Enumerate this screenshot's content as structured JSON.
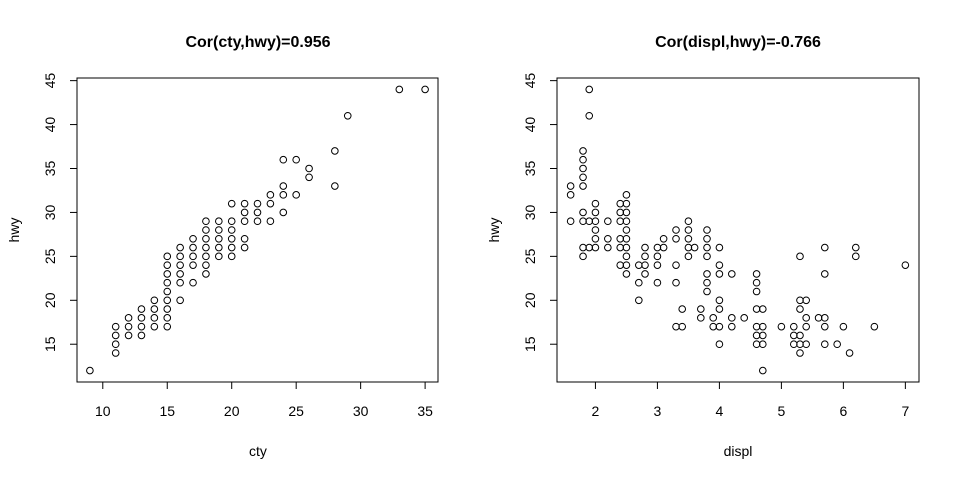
{
  "chart_data": [
    {
      "type": "scatter",
      "title": "Cor(cty,hwy)=0.956",
      "xlabel": "cty",
      "ylabel": "hwy",
      "xlim": [
        8.0,
        36.0
      ],
      "ylim": [
        10.7,
        45.3
      ],
      "xticks": [
        10,
        15,
        20,
        25,
        30,
        35
      ],
      "yticks": [
        15,
        20,
        25,
        30,
        35,
        40,
        45
      ],
      "grid": false,
      "marker": "open-circle",
      "points": [
        [
          9,
          12
        ],
        [
          11,
          14
        ],
        [
          11,
          15
        ],
        [
          11,
          16
        ],
        [
          11,
          17
        ],
        [
          12,
          16
        ],
        [
          12,
          17
        ],
        [
          12,
          18
        ],
        [
          13,
          16
        ],
        [
          13,
          17
        ],
        [
          13,
          18
        ],
        [
          13,
          19
        ],
        [
          14,
          17
        ],
        [
          14,
          18
        ],
        [
          14,
          19
        ],
        [
          14,
          20
        ],
        [
          15,
          17
        ],
        [
          15,
          18
        ],
        [
          15,
          19
        ],
        [
          15,
          20
        ],
        [
          15,
          21
        ],
        [
          15,
          22
        ],
        [
          15,
          23
        ],
        [
          15,
          24
        ],
        [
          15,
          25
        ],
        [
          16,
          20
        ],
        [
          16,
          22
        ],
        [
          16,
          23
        ],
        [
          16,
          24
        ],
        [
          16,
          25
        ],
        [
          16,
          26
        ],
        [
          17,
          22
        ],
        [
          17,
          24
        ],
        [
          17,
          25
        ],
        [
          17,
          26
        ],
        [
          17,
          27
        ],
        [
          18,
          23
        ],
        [
          18,
          24
        ],
        [
          18,
          25
        ],
        [
          18,
          26
        ],
        [
          18,
          27
        ],
        [
          18,
          28
        ],
        [
          18,
          29
        ],
        [
          19,
          25
        ],
        [
          19,
          26
        ],
        [
          19,
          27
        ],
        [
          19,
          28
        ],
        [
          19,
          29
        ],
        [
          20,
          25
        ],
        [
          20,
          26
        ],
        [
          20,
          27
        ],
        [
          20,
          28
        ],
        [
          20,
          29
        ],
        [
          20,
          31
        ],
        [
          21,
          26
        ],
        [
          21,
          27
        ],
        [
          21,
          29
        ],
        [
          21,
          30
        ],
        [
          21,
          31
        ],
        [
          22,
          29
        ],
        [
          22,
          30
        ],
        [
          22,
          31
        ],
        [
          23,
          29
        ],
        [
          23,
          31
        ],
        [
          23,
          32
        ],
        [
          24,
          30
        ],
        [
          24,
          32
        ],
        [
          24,
          33
        ],
        [
          24,
          36
        ],
        [
          25,
          32
        ],
        [
          25,
          36
        ],
        [
          26,
          34
        ],
        [
          26,
          35
        ],
        [
          28,
          33
        ],
        [
          28,
          37
        ],
        [
          29,
          41
        ],
        [
          33,
          44
        ],
        [
          35,
          44
        ]
      ]
    },
    {
      "type": "scatter",
      "title": "Cor(displ,hwy)=-0.766",
      "xlabel": "displ",
      "ylabel": "hwy",
      "xlim": [
        1.38,
        7.22
      ],
      "ylim": [
        10.7,
        45.3
      ],
      "xticks": [
        2,
        3,
        4,
        5,
        6,
        7
      ],
      "yticks": [
        15,
        20,
        25,
        30,
        35,
        40,
        45
      ],
      "grid": false,
      "marker": "open-circle",
      "points": [
        [
          1.6,
          29
        ],
        [
          1.6,
          32
        ],
        [
          1.6,
          33
        ],
        [
          1.8,
          25
        ],
        [
          1.8,
          26
        ],
        [
          1.8,
          29
        ],
        [
          1.8,
          30
        ],
        [
          1.8,
          33
        ],
        [
          1.8,
          34
        ],
        [
          1.8,
          35
        ],
        [
          1.8,
          36
        ],
        [
          1.8,
          37
        ],
        [
          1.9,
          26
        ],
        [
          1.9,
          29
        ],
        [
          1.9,
          41
        ],
        [
          1.9,
          44
        ],
        [
          2.0,
          26
        ],
        [
          2.0,
          27
        ],
        [
          2.0,
          28
        ],
        [
          2.0,
          29
        ],
        [
          2.0,
          30
        ],
        [
          2.0,
          31
        ],
        [
          2.2,
          26
        ],
        [
          2.2,
          27
        ],
        [
          2.2,
          29
        ],
        [
          2.4,
          24
        ],
        [
          2.4,
          26
        ],
        [
          2.4,
          27
        ],
        [
          2.4,
          29
        ],
        [
          2.4,
          30
        ],
        [
          2.4,
          31
        ],
        [
          2.5,
          23
        ],
        [
          2.5,
          24
        ],
        [
          2.5,
          25
        ],
        [
          2.5,
          26
        ],
        [
          2.5,
          27
        ],
        [
          2.5,
          28
        ],
        [
          2.5,
          29
        ],
        [
          2.5,
          30
        ],
        [
          2.5,
          31
        ],
        [
          2.5,
          32
        ],
        [
          2.7,
          20
        ],
        [
          2.7,
          22
        ],
        [
          2.7,
          24
        ],
        [
          2.8,
          23
        ],
        [
          2.8,
          24
        ],
        [
          2.8,
          25
        ],
        [
          2.8,
          26
        ],
        [
          3.0,
          22
        ],
        [
          3.0,
          24
        ],
        [
          3.0,
          25
        ],
        [
          3.0,
          26
        ],
        [
          3.1,
          26
        ],
        [
          3.1,
          27
        ],
        [
          3.3,
          17
        ],
        [
          3.3,
          22
        ],
        [
          3.3,
          24
        ],
        [
          3.3,
          27
        ],
        [
          3.3,
          28
        ],
        [
          3.4,
          17
        ],
        [
          3.4,
          19
        ],
        [
          3.5,
          25
        ],
        [
          3.5,
          26
        ],
        [
          3.5,
          27
        ],
        [
          3.5,
          28
        ],
        [
          3.5,
          29
        ],
        [
          3.6,
          26
        ],
        [
          3.7,
          18
        ],
        [
          3.7,
          19
        ],
        [
          3.8,
          21
        ],
        [
          3.8,
          22
        ],
        [
          3.8,
          23
        ],
        [
          3.8,
          25
        ],
        [
          3.8,
          26
        ],
        [
          3.8,
          27
        ],
        [
          3.8,
          28
        ],
        [
          3.9,
          17
        ],
        [
          3.9,
          18
        ],
        [
          4.0,
          15
        ],
        [
          4.0,
          17
        ],
        [
          4.0,
          19
        ],
        [
          4.0,
          20
        ],
        [
          4.0,
          23
        ],
        [
          4.0,
          24
        ],
        [
          4.0,
          26
        ],
        [
          4.2,
          17
        ],
        [
          4.2,
          18
        ],
        [
          4.2,
          23
        ],
        [
          4.4,
          18
        ],
        [
          4.6,
          15
        ],
        [
          4.6,
          16
        ],
        [
          4.6,
          17
        ],
        [
          4.6,
          19
        ],
        [
          4.6,
          21
        ],
        [
          4.6,
          22
        ],
        [
          4.6,
          23
        ],
        [
          4.7,
          12
        ],
        [
          4.7,
          15
        ],
        [
          4.7,
          16
        ],
        [
          4.7,
          17
        ],
        [
          4.7,
          19
        ],
        [
          5.0,
          17
        ],
        [
          5.2,
          15
        ],
        [
          5.2,
          16
        ],
        [
          5.2,
          17
        ],
        [
          5.3,
          14
        ],
        [
          5.3,
          15
        ],
        [
          5.3,
          16
        ],
        [
          5.3,
          19
        ],
        [
          5.3,
          20
        ],
        [
          5.3,
          25
        ],
        [
          5.4,
          15
        ],
        [
          5.4,
          17
        ],
        [
          5.4,
          18
        ],
        [
          5.4,
          20
        ],
        [
          5.6,
          18
        ],
        [
          5.7,
          15
        ],
        [
          5.7,
          17
        ],
        [
          5.7,
          18
        ],
        [
          5.7,
          23
        ],
        [
          5.7,
          26
        ],
        [
          5.9,
          15
        ],
        [
          6.0,
          17
        ],
        [
          6.1,
          14
        ],
        [
          6.2,
          25
        ],
        [
          6.2,
          26
        ],
        [
          6.5,
          17
        ],
        [
          7.0,
          24
        ]
      ]
    }
  ]
}
